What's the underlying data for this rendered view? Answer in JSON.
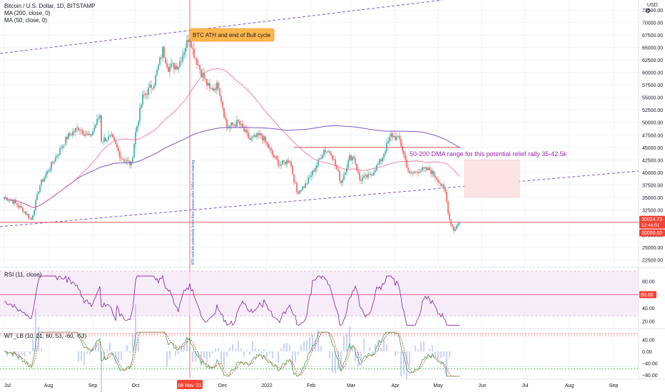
{
  "header": {
    "symbol_title": "Bitcoin / U.S. Dollar, 1D, BITSTAMP",
    "ma200_label": "MA (200, close, 0)",
    "ma50_label": "MA (50, close, 0)",
    "currency": "USD"
  },
  "rsi_pane": {
    "label": "RSI (11, close)"
  },
  "wt_pane": {
    "label": "WT_LB (10, 21, 60, 53, -60, -53)"
  },
  "annotations": {
    "ath_callout": "BTC ATH and end of Bull cycle",
    "dma_range_text": "50-200 DMA range for this potential relief rally 35-42.5k",
    "vertical_note": "ATH and btc potentially finish their season after 546d since halving",
    "cursor_date": "08 Nov '21"
  },
  "price_badges": {
    "last_price": "30024.73",
    "countdown": "12:46:01",
    "level_price": "30000.00"
  },
  "colors": {
    "up_candle": "#26a69a",
    "down_candle": "#ef5350",
    "ma200": "#7e57c2",
    "ma50": "#f06292",
    "rsi_line": "#7b1fa2",
    "rsi_band": "#f3e5f5",
    "callout_fill": "#ffb74d",
    "dma_box": "#fce4e4",
    "badge_red": "#f44336",
    "annotation_text": "#9c27b0",
    "vertical_note_text": "#1e5bd9"
  },
  "chart_data": [
    {
      "type": "candlestick",
      "title": "Bitcoin / U.S. Dollar, 1D, BITSTAMP",
      "series": [
        {
          "name": "Bitcoin / U.S. Dollar",
          "points": [
            [
              "2021-07-01",
              35000
            ],
            [
              "2021-07-07",
              34200
            ],
            [
              "2021-07-14",
              32500
            ],
            [
              "2021-07-20",
              30500
            ],
            [
              "2021-07-26",
              37500
            ],
            [
              "2021-08-01",
              40500
            ],
            [
              "2021-08-08",
              44000
            ],
            [
              "2021-08-14",
              47000
            ],
            [
              "2021-08-22",
              49000
            ],
            [
              "2021-08-30",
              47000
            ],
            [
              "2021-09-06",
              51500
            ],
            [
              "2021-09-07",
              46500
            ],
            [
              "2021-09-14",
              47000
            ],
            [
              "2021-09-21",
              43000
            ],
            [
              "2021-09-28",
              41500
            ],
            [
              "2021-10-01",
              48000
            ],
            [
              "2021-10-06",
              55000
            ],
            [
              "2021-10-14",
              58000
            ],
            [
              "2021-10-20",
              64500
            ],
            [
              "2021-10-24",
              61000
            ],
            [
              "2021-10-31",
              61500
            ],
            [
              "2021-11-08",
              67500
            ],
            [
              "2021-11-10",
              64500
            ],
            [
              "2021-11-16",
              60000
            ],
            [
              "2021-11-22",
              56500
            ],
            [
              "2021-11-28",
              57500
            ],
            [
              "2021-12-04",
              49000
            ],
            [
              "2021-12-12",
              50000
            ],
            [
              "2021-12-20",
              46500
            ],
            [
              "2021-12-28",
              47500
            ],
            [
              "2022-01-05",
              43500
            ],
            [
              "2022-01-10",
              41500
            ],
            [
              "2022-01-17",
              42500
            ],
            [
              "2022-01-22",
              36000
            ],
            [
              "2022-01-28",
              37500
            ],
            [
              "2022-02-05",
              41500
            ],
            [
              "2022-02-10",
              44500
            ],
            [
              "2022-02-15",
              44000
            ],
            [
              "2022-02-22",
              38000
            ],
            [
              "2022-02-28",
              43000
            ],
            [
              "2022-03-03",
              43000
            ],
            [
              "2022-03-07",
              38500
            ],
            [
              "2022-03-15",
              39500
            ],
            [
              "2022-03-22",
              42500
            ],
            [
              "2022-03-29",
              47500
            ],
            [
              "2022-04-04",
              46500
            ],
            [
              "2022-04-11",
              39500
            ],
            [
              "2022-04-18",
              40500
            ],
            [
              "2022-04-25",
              40500
            ],
            [
              "2022-05-01",
              38500
            ],
            [
              "2022-05-06",
              36000
            ],
            [
              "2022-05-09",
              30500
            ],
            [
              "2022-05-12",
              28500
            ],
            [
              "2022-05-16",
              30024.73
            ]
          ]
        },
        {
          "name": "MA (200, close, 0)"
        },
        {
          "name": "MA (50, close, 0)"
        }
      ],
      "x_ticks": [
        "Jul",
        "Aug",
        "Sep",
        "Oct",
        "08 Nov '21",
        "Dec",
        "2022",
        "Feb",
        "Mar",
        "Apr",
        "May",
        "Jun",
        "Jul",
        "Aug",
        "Sep"
      ],
      "y_ticks": [
        72500,
        70000,
        67500,
        65000,
        62500,
        60000,
        57500,
        55000,
        52500,
        50000,
        47500,
        45000,
        42500,
        40000,
        37500,
        35000,
        32500,
        30000,
        27500,
        25000,
        22500
      ],
      "ylim": [
        21000,
        74500
      ],
      "dma_range": [
        35000,
        42500
      ]
    },
    {
      "type": "line",
      "title": "RSI (11, close)",
      "ylim": [
        10,
        100
      ],
      "y_ticks": [
        80,
        60,
        40,
        20
      ],
      "levels": [
        60
      ],
      "last_value": "60.00"
    },
    {
      "type": "line",
      "title": "WT_LB (10, 21, 60, 53, -60, -53)",
      "ylim": [
        -90,
        75
      ],
      "y_ticks": [
        40,
        0,
        -40,
        -80
      ],
      "levels": [
        60,
        53,
        -53,
        -60
      ]
    }
  ]
}
